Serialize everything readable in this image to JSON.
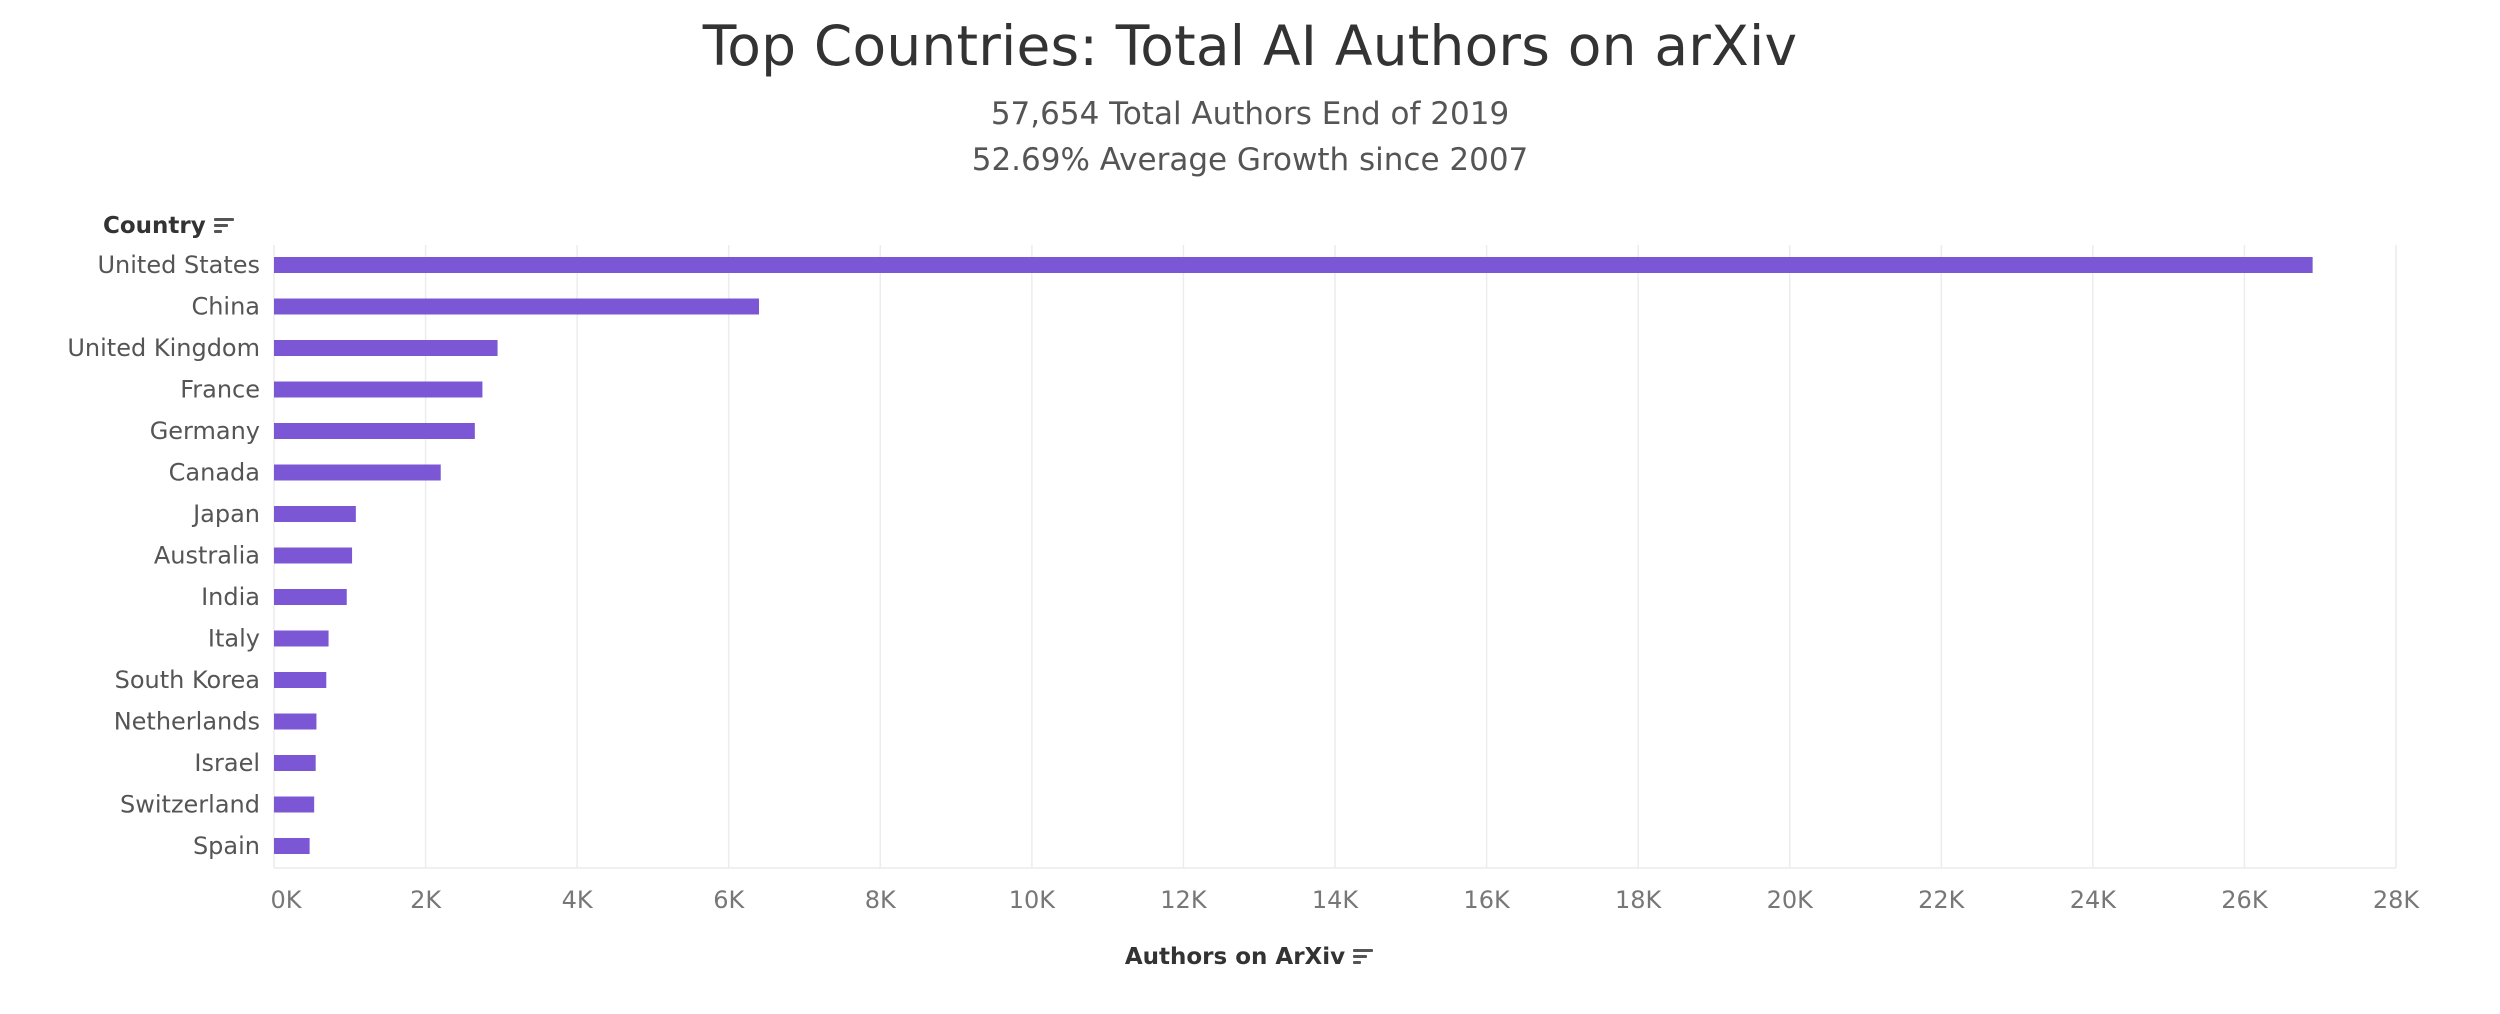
{
  "chart_data": {
    "type": "bar",
    "orientation": "horizontal",
    "title": "Top Countries: Total AI Authors on arXiv",
    "subtitle_lines": [
      "57,654 Total Authors End of 2019",
      "52.69% Average Growth since 2007"
    ],
    "ylabel": "Country",
    "xlabel": "Authors on ArXiv",
    "categories": [
      "United States",
      "China",
      "United Kingdom",
      "France",
      "Germany",
      "Canada",
      "Japan",
      "Australia",
      "India",
      "Italy",
      "South Korea",
      "Netherlands",
      "Israel",
      "Switzerland",
      "Spain"
    ],
    "values": [
      26900,
      6400,
      2950,
      2750,
      2650,
      2200,
      1080,
      1030,
      960,
      720,
      690,
      560,
      550,
      530,
      470
    ],
    "xlim": [
      0,
      28000
    ],
    "xticks": [
      0,
      2000,
      4000,
      6000,
      8000,
      10000,
      12000,
      14000,
      16000,
      18000,
      20000,
      22000,
      24000,
      26000,
      28000
    ],
    "xtick_labels": [
      "0K",
      "2K",
      "4K",
      "6K",
      "8K",
      "10K",
      "12K",
      "14K",
      "16K",
      "18K",
      "20K",
      "22K",
      "24K",
      "26K",
      "28K"
    ],
    "grid": "vertical",
    "bar_color": "#7b57d6",
    "grid_color": "#ececec",
    "legend": "none"
  }
}
